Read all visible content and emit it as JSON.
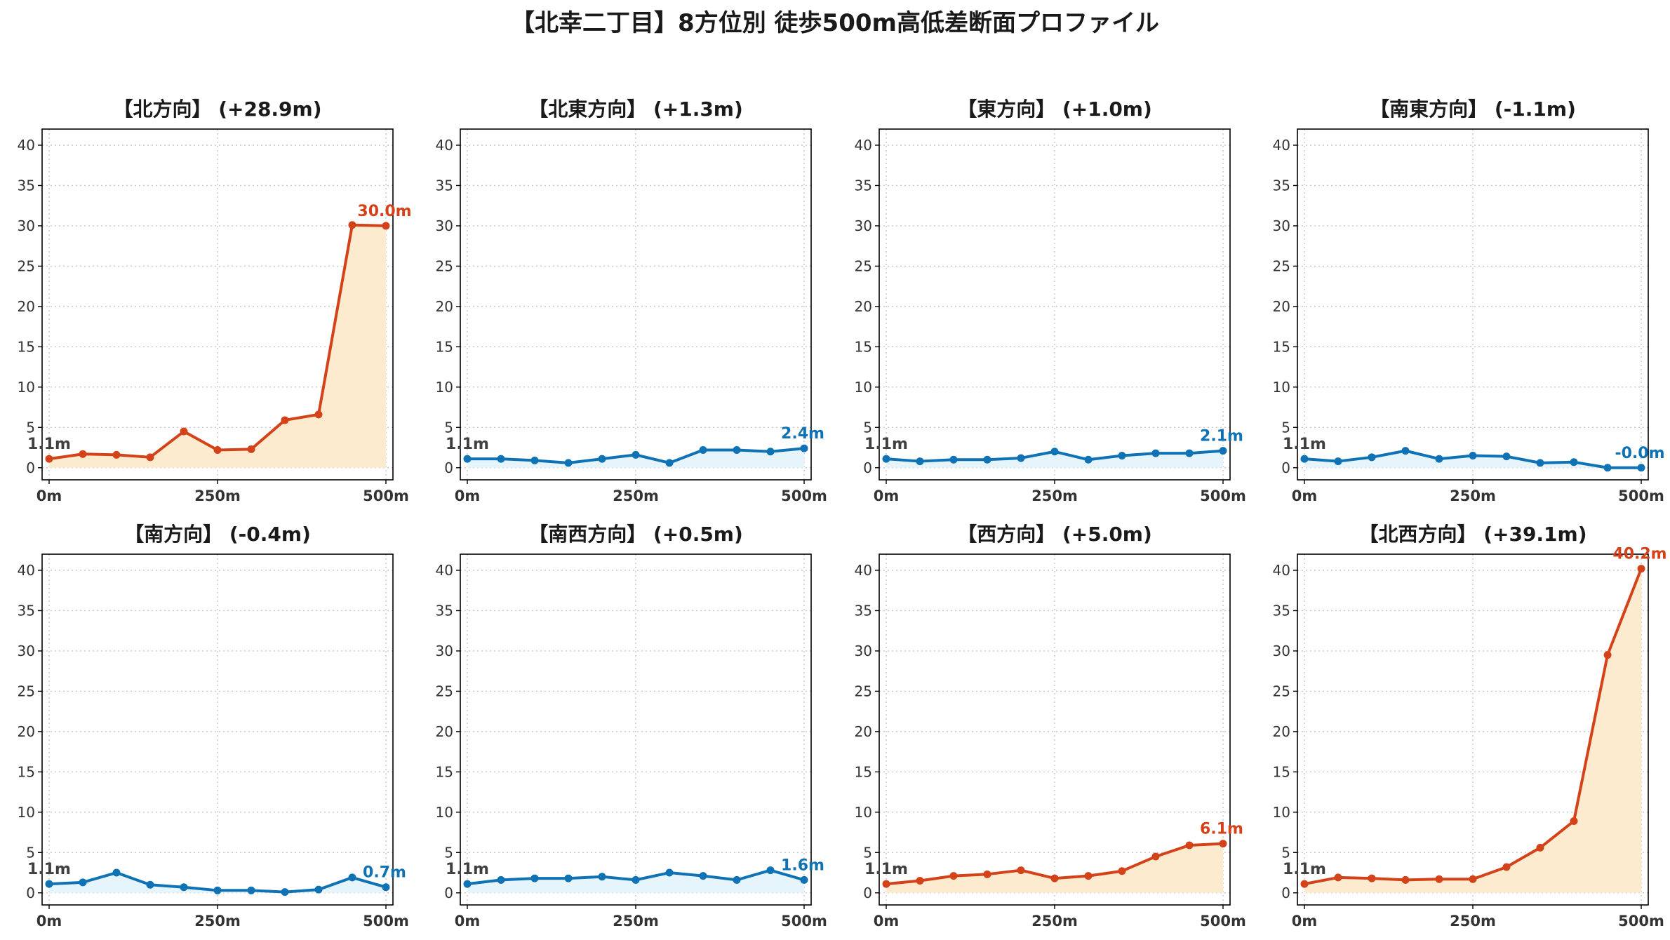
{
  "title": "【北幸二丁目】8方位別 徒歩500m高低差断面プロファイル",
  "colors": {
    "up_line": "#d4421a",
    "up_fill": "#fdebd0",
    "flat_line": "#0e72b5",
    "flat_fill": "#e6f4fb",
    "grid": "#c8c8c8",
    "axis": "#000000"
  },
  "chart_data": [
    {
      "type": "area",
      "title": "【北方向】 (+28.9m)",
      "trend": "up",
      "x": [
        0,
        50,
        100,
        150,
        200,
        250,
        300,
        350,
        400,
        450,
        500
      ],
      "values": [
        1.1,
        1.7,
        1.6,
        1.3,
        4.5,
        2.2,
        2.3,
        5.9,
        6.6,
        30.1,
        30.0
      ],
      "start_label": "1.1m",
      "end_label": "30.0m",
      "x_ticks": [
        "0m",
        "250m",
        "500m"
      ],
      "y_ticks": [
        "0",
        "5",
        "10",
        "15",
        "20",
        "25",
        "30",
        "35",
        "40"
      ],
      "xlim": [
        0,
        500
      ],
      "ylim": [
        -1.5,
        42
      ],
      "grid": true
    },
    {
      "type": "area",
      "title": "【北東方向】 (+1.3m)",
      "trend": "flat",
      "x": [
        0,
        50,
        100,
        150,
        200,
        250,
        300,
        350,
        400,
        450,
        500
      ],
      "values": [
        1.1,
        1.1,
        0.9,
        0.6,
        1.1,
        1.6,
        0.6,
        2.2,
        2.2,
        2.0,
        2.4
      ],
      "start_label": "1.1m",
      "end_label": "2.4m",
      "x_ticks": [
        "0m",
        "250m",
        "500m"
      ],
      "y_ticks": [
        "0",
        "5",
        "10",
        "15",
        "20",
        "25",
        "30",
        "35",
        "40"
      ],
      "xlim": [
        0,
        500
      ],
      "ylim": [
        -1.5,
        42
      ],
      "grid": true
    },
    {
      "type": "area",
      "title": "【東方向】 (+1.0m)",
      "trend": "flat",
      "x": [
        0,
        50,
        100,
        150,
        200,
        250,
        300,
        350,
        400,
        450,
        500
      ],
      "values": [
        1.1,
        0.8,
        1.0,
        1.0,
        1.2,
        2.0,
        1.0,
        1.5,
        1.8,
        1.8,
        2.1
      ],
      "start_label": "1.1m",
      "end_label": "2.1m",
      "x_ticks": [
        "0m",
        "250m",
        "500m"
      ],
      "y_ticks": [
        "0",
        "5",
        "10",
        "15",
        "20",
        "25",
        "30",
        "35",
        "40"
      ],
      "xlim": [
        0,
        500
      ],
      "ylim": [
        -1.5,
        42
      ],
      "grid": true
    },
    {
      "type": "area",
      "title": "【南東方向】 (-1.1m)",
      "trend": "flat",
      "x": [
        0,
        50,
        100,
        150,
        200,
        250,
        300,
        350,
        400,
        450,
        500
      ],
      "values": [
        1.1,
        0.8,
        1.3,
        2.1,
        1.1,
        1.5,
        1.4,
        0.6,
        0.7,
        -0.0,
        -0.0
      ],
      "start_label": "1.1m",
      "end_label": "-0.0m",
      "x_ticks": [
        "0m",
        "250m",
        "500m"
      ],
      "y_ticks": [
        "0",
        "5",
        "10",
        "15",
        "20",
        "25",
        "30",
        "35",
        "40"
      ],
      "xlim": [
        0,
        500
      ],
      "ylim": [
        -1.5,
        42
      ],
      "grid": true
    },
    {
      "type": "area",
      "title": "【南方向】 (-0.4m)",
      "trend": "flat",
      "x": [
        0,
        50,
        100,
        150,
        200,
        250,
        300,
        350,
        400,
        450,
        500
      ],
      "values": [
        1.1,
        1.3,
        2.5,
        1.0,
        0.7,
        0.3,
        0.3,
        0.1,
        0.4,
        1.9,
        0.7
      ],
      "start_label": "1.1m",
      "end_label": "0.7m",
      "x_ticks": [
        "0m",
        "250m",
        "500m"
      ],
      "y_ticks": [
        "0",
        "5",
        "10",
        "15",
        "20",
        "25",
        "30",
        "35",
        "40"
      ],
      "xlim": [
        0,
        500
      ],
      "ylim": [
        -1.5,
        42
      ],
      "grid": true
    },
    {
      "type": "area",
      "title": "【南西方向】 (+0.5m)",
      "trend": "flat",
      "x": [
        0,
        50,
        100,
        150,
        200,
        250,
        300,
        350,
        400,
        450,
        500
      ],
      "values": [
        1.1,
        1.6,
        1.8,
        1.8,
        2.0,
        1.6,
        2.5,
        2.1,
        1.6,
        2.8,
        1.6
      ],
      "start_label": "1.1m",
      "end_label": "1.6m",
      "x_ticks": [
        "0m",
        "250m",
        "500m"
      ],
      "y_ticks": [
        "0",
        "5",
        "10",
        "15",
        "20",
        "25",
        "30",
        "35",
        "40"
      ],
      "xlim": [
        0,
        500
      ],
      "ylim": [
        -1.5,
        42
      ],
      "grid": true
    },
    {
      "type": "area",
      "title": "【西方向】 (+5.0m)",
      "trend": "up",
      "x": [
        0,
        50,
        100,
        150,
        200,
        250,
        300,
        350,
        400,
        450,
        500
      ],
      "values": [
        1.1,
        1.5,
        2.1,
        2.3,
        2.8,
        1.8,
        2.1,
        2.7,
        4.5,
        5.9,
        6.1
      ],
      "start_label": "1.1m",
      "end_label": "6.1m",
      "x_ticks": [
        "0m",
        "250m",
        "500m"
      ],
      "y_ticks": [
        "0",
        "5",
        "10",
        "15",
        "20",
        "25",
        "30",
        "35",
        "40"
      ],
      "xlim": [
        0,
        500
      ],
      "ylim": [
        -1.5,
        42
      ],
      "grid": true
    },
    {
      "type": "area",
      "title": "【北西方向】 (+39.1m)",
      "trend": "up",
      "x": [
        0,
        50,
        100,
        150,
        200,
        250,
        300,
        350,
        400,
        450,
        500
      ],
      "values": [
        1.1,
        1.9,
        1.8,
        1.6,
        1.7,
        1.7,
        3.2,
        5.6,
        8.9,
        29.5,
        40.2
      ],
      "start_label": "1.1m",
      "end_label": "40.2m",
      "x_ticks": [
        "0m",
        "250m",
        "500m"
      ],
      "y_ticks": [
        "0",
        "5",
        "10",
        "15",
        "20",
        "25",
        "30",
        "35",
        "40"
      ],
      "xlim": [
        0,
        500
      ],
      "ylim": [
        -1.5,
        42
      ],
      "grid": true
    }
  ]
}
